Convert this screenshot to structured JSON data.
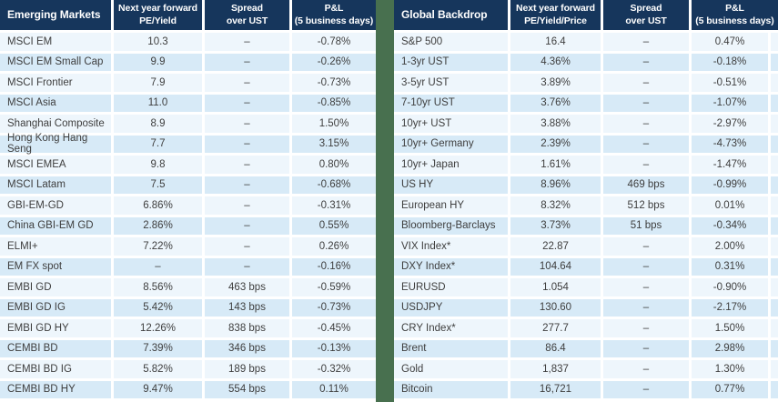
{
  "colors": {
    "header_bg": "#16365C",
    "row_light": "#EEF6FC",
    "row_dark": "#D7EAF7",
    "divider_green": "#48704F",
    "body_text": "#3E3E3E",
    "header_text": "#FFFFFF"
  },
  "chart_data": [
    {
      "type": "table",
      "title": "Emerging Markets",
      "columns": [
        "Next year forward\nPE/Yield",
        "Spread\nover UST",
        "P&L\n(5 business days)"
      ],
      "cutoff_column": false,
      "rows": [
        [
          "MSCI EM",
          "10.3",
          "–",
          "-0.78%"
        ],
        [
          "MSCI EM Small Cap",
          "9.9",
          "–",
          "-0.26%"
        ],
        [
          "MSCI Frontier",
          "7.9",
          "–",
          "-0.73%"
        ],
        [
          "MSCI Asia",
          "11.0",
          "–",
          "-0.85%"
        ],
        [
          "Shanghai Composite",
          "8.9",
          "–",
          "1.50%"
        ],
        [
          "Hong Kong Hang Seng",
          "7.7",
          "–",
          "3.15%"
        ],
        [
          "MSCI EMEA",
          "9.8",
          "–",
          "0.80%"
        ],
        [
          "MSCI Latam",
          "7.5",
          "–",
          "-0.68%"
        ],
        [
          "GBI-EM-GD",
          "6.86%",
          "–",
          "-0.31%"
        ],
        [
          "China GBI-EM GD",
          "2.86%",
          "–",
          "0.55%"
        ],
        [
          "ELMI+",
          "7.22%",
          "–",
          "0.26%"
        ],
        [
          "EM FX spot",
          "–",
          "–",
          "-0.16%"
        ],
        [
          "EMBI GD",
          "8.56%",
          "463 bps",
          "-0.59%"
        ],
        [
          "EMBI GD IG",
          "5.42%",
          "143 bps",
          "-0.73%"
        ],
        [
          "EMBI GD HY",
          "12.26%",
          "838 bps",
          "-0.45%"
        ],
        [
          "CEMBI BD",
          "7.39%",
          "346 bps",
          "-0.13%"
        ],
        [
          "CEMBI BD IG",
          "5.82%",
          "189 bps",
          "-0.32%"
        ],
        [
          "CEMBI BD HY",
          "9.47%",
          "554 bps",
          "0.11%"
        ]
      ]
    },
    {
      "type": "table",
      "title": "Global Backdrop",
      "columns": [
        "Next year forward\nPE/Yield/Price",
        "Spread\nover UST",
        "P&L\n(5 business days)"
      ],
      "cutoff_column": true,
      "rows": [
        [
          "S&P 500",
          "16.4",
          "–",
          "0.47%"
        ],
        [
          "1-3yr UST",
          "4.36%",
          "–",
          "-0.18%"
        ],
        [
          "3-5yr UST",
          "3.89%",
          "–",
          "-0.51%"
        ],
        [
          "7-10yr UST",
          "3.76%",
          "–",
          "-1.07%"
        ],
        [
          "10yr+ UST",
          "3.88%",
          "–",
          "-2.97%"
        ],
        [
          "10yr+ Germany",
          "2.39%",
          "–",
          "-4.73%"
        ],
        [
          "10yr+ Japan",
          "1.61%",
          "–",
          "-1.47%"
        ],
        [
          "US HY",
          "8.96%",
          "469 bps",
          "-0.99%"
        ],
        [
          "European HY",
          "8.32%",
          "512 bps",
          "0.01%"
        ],
        [
          "Bloomberg-Barclays",
          "3.73%",
          "51 bps",
          "-0.34%"
        ],
        [
          "VIX Index*",
          "22.87",
          "–",
          "2.00%"
        ],
        [
          "DXY Index*",
          "104.64",
          "–",
          "0.31%"
        ],
        [
          "EURUSD",
          "1.054",
          "–",
          "-0.90%"
        ],
        [
          "USDJPY",
          "130.60",
          "–",
          "-2.17%"
        ],
        [
          "CRY Index*",
          "277.7",
          "–",
          "1.50%"
        ],
        [
          "Brent",
          "86.4",
          "–",
          "2.98%"
        ],
        [
          "Gold",
          "1,837",
          "–",
          "1.30%"
        ],
        [
          "Bitcoin",
          "16,721",
          "–",
          "0.77%"
        ]
      ]
    }
  ]
}
